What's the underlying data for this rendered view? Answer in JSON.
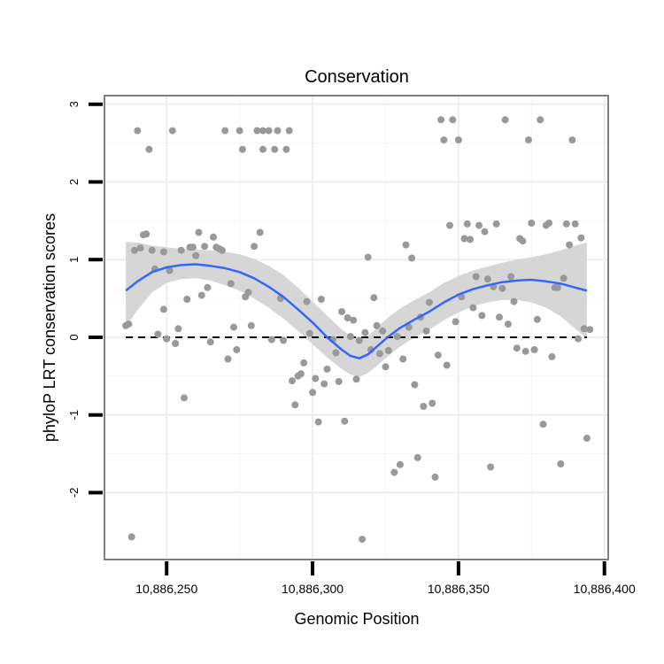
{
  "chart_data": {
    "type": "scatter",
    "title": "Conservation",
    "xlabel": "Genomic Position",
    "ylabel": "phyloP LRT conservation scores",
    "xlim": [
      10886229,
      10886401
    ],
    "ylim": [
      -2.85,
      3.1
    ],
    "x_ticks": [
      {
        "value": 10886250,
        "label": "10,886,250"
      },
      {
        "value": 10886300,
        "label": "10,886,300"
      },
      {
        "value": 10886350,
        "label": "10,886,350"
      },
      {
        "value": 10886400,
        "label": "10,886,400"
      }
    ],
    "y_ticks": [
      {
        "value": -2,
        "label": "-2"
      },
      {
        "value": -1,
        "label": "-1"
      },
      {
        "value": 0,
        "label": "0"
      },
      {
        "value": 1,
        "label": "1"
      },
      {
        "value": 2,
        "label": "2"
      },
      {
        "value": 3,
        "label": "3"
      }
    ],
    "reference_line": {
      "y": 0,
      "style": "dashed"
    },
    "grid": true,
    "colors": {
      "points": "#999999",
      "smooth": "#3366ff",
      "band": "#d6d6d6",
      "panel_border": "#7f7f7f"
    },
    "points": [
      [
        10886236,
        0.15
      ],
      [
        10886237,
        0.17
      ],
      [
        10886238,
        -2.57
      ],
      [
        10886239,
        1.12
      ],
      [
        10886240,
        2.66
      ],
      [
        10886241,
        1.15
      ],
      [
        10886242,
        1.32
      ],
      [
        10886243,
        1.33
      ],
      [
        10886244,
        2.42
      ],
      [
        10886245,
        1.12
      ],
      [
        10886246,
        0.88
      ],
      [
        10886247,
        0.04
      ],
      [
        10886249,
        1.1
      ],
      [
        10886249,
        0.36
      ],
      [
        10886250,
        -0.02
      ],
      [
        10886251,
        0.86
      ],
      [
        10886252,
        2.66
      ],
      [
        10886253,
        -0.08
      ],
      [
        10886254,
        0.11
      ],
      [
        10886255,
        1.12
      ],
      [
        10886256,
        -0.78
      ],
      [
        10886257,
        0.49
      ],
      [
        10886258,
        1.16
      ],
      [
        10886259,
        1.16
      ],
      [
        10886260,
        1.05
      ],
      [
        10886261,
        1.35
      ],
      [
        10886262,
        0.54
      ],
      [
        10886263,
        1.17
      ],
      [
        10886264,
        0.64
      ],
      [
        10886265,
        -0.06
      ],
      [
        10886266,
        1.29
      ],
      [
        10886267,
        1.16
      ],
      [
        10886268,
        1.14
      ],
      [
        10886269,
        1.12
      ],
      [
        10886270,
        2.66
      ],
      [
        10886271,
        -0.28
      ],
      [
        10886272,
        0.69
      ],
      [
        10886273,
        0.13
      ],
      [
        10886274,
        -0.16
      ],
      [
        10886275,
        2.66
      ],
      [
        10886276,
        2.42
      ],
      [
        10886277,
        0.52
      ],
      [
        10886278,
        0.58
      ],
      [
        10886279,
        0.15
      ],
      [
        10886280,
        1.17
      ],
      [
        10886281,
        2.66
      ],
      [
        10886282,
        1.35
      ],
      [
        10886283,
        2.66
      ],
      [
        10886283,
        2.42
      ],
      [
        10886285,
        2.66
      ],
      [
        10886286,
        -0.03
      ],
      [
        10886287,
        2.42
      ],
      [
        10886288,
        2.66
      ],
      [
        10886289,
        0.5
      ],
      [
        10886290,
        -0.04
      ],
      [
        10886291,
        2.42
      ],
      [
        10886292,
        2.66
      ],
      [
        10886293,
        -0.56
      ],
      [
        10886294,
        -0.87
      ],
      [
        10886295,
        -0.5
      ],
      [
        10886296,
        -0.47
      ],
      [
        10886297,
        -0.33
      ],
      [
        10886298,
        0.46
      ],
      [
        10886299,
        0.05
      ],
      [
        10886300,
        -0.71
      ],
      [
        10886301,
        -0.53
      ],
      [
        10886302,
        -1.09
      ],
      [
        10886303,
        0.49
      ],
      [
        10886304,
        -0.6
      ],
      [
        10886305,
        -0.41
      ],
      [
        10886307,
        -0.03
      ],
      [
        10886308,
        -0.2
      ],
      [
        10886309,
        -0.57
      ],
      [
        10886310,
        0.33
      ],
      [
        10886311,
        -1.08
      ],
      [
        10886312,
        0.25
      ],
      [
        10886313,
        0.01
      ],
      [
        10886314,
        0.22
      ],
      [
        10886315,
        -0.54
      ],
      [
        10886316,
        -0.04
      ],
      [
        10886317,
        -2.6
      ],
      [
        10886318,
        0.06
      ],
      [
        10886319,
        1.03
      ],
      [
        10886320,
        -0.16
      ],
      [
        10886321,
        0.51
      ],
      [
        10886322,
        0.15
      ],
      [
        10886323,
        -0.21
      ],
      [
        10886324,
        0.08
      ],
      [
        10886325,
        -0.38
      ],
      [
        10886326,
        -0.17
      ],
      [
        10886328,
        -1.74
      ],
      [
        10886329,
        0.01
      ],
      [
        10886330,
        -1.64
      ],
      [
        10886331,
        -0.28
      ],
      [
        10886332,
        1.19
      ],
      [
        10886333,
        0.13
      ],
      [
        10886334,
        1.02
      ],
      [
        10886335,
        -0.61
      ],
      [
        10886336,
        -1.55
      ],
      [
        10886337,
        0.26
      ],
      [
        10886338,
        -0.89
      ],
      [
        10886339,
        0.08
      ],
      [
        10886340,
        0.45
      ],
      [
        10886341,
        -0.85
      ],
      [
        10886342,
        -1.8
      ],
      [
        10886343,
        -0.23
      ],
      [
        10886344,
        2.8
      ],
      [
        10886345,
        2.54
      ],
      [
        10886346,
        -0.36
      ],
      [
        10886347,
        1.44
      ],
      [
        10886348,
        2.8
      ],
      [
        10886349,
        0.2
      ],
      [
        10886350,
        2.54
      ],
      [
        10886351,
        0.52
      ],
      [
        10886352,
        1.27
      ],
      [
        10886353,
        1.46
      ],
      [
        10886354,
        1.26
      ],
      [
        10886355,
        0.38
      ],
      [
        10886356,
        0.78
      ],
      [
        10886357,
        1.44
      ],
      [
        10886358,
        0.28
      ],
      [
        10886359,
        1.36
      ],
      [
        10886360,
        0.75
      ],
      [
        10886361,
        -1.67
      ],
      [
        10886362,
        0.65
      ],
      [
        10886363,
        1.46
      ],
      [
        10886364,
        0.26
      ],
      [
        10886365,
        0.63
      ],
      [
        10886366,
        2.8
      ],
      [
        10886367,
        0.17
      ],
      [
        10886368,
        0.78
      ],
      [
        10886369,
        0.46
      ],
      [
        10886370,
        -0.14
      ],
      [
        10886371,
        1.27
      ],
      [
        10886372,
        1.24
      ],
      [
        10886373,
        -0.18
      ],
      [
        10886374,
        2.54
      ],
      [
        10886375,
        1.47
      ],
      [
        10886376,
        -0.16
      ],
      [
        10886377,
        0.23
      ],
      [
        10886378,
        2.8
      ],
      [
        10886379,
        -1.12
      ],
      [
        10886380,
        1.44
      ],
      [
        10886381,
        1.47
      ],
      [
        10886382,
        -0.25
      ],
      [
        10886383,
        0.64
      ],
      [
        10886384,
        0.64
      ],
      [
        10886385,
        -1.63
      ],
      [
        10886386,
        0.76
      ],
      [
        10886387,
        1.46
      ],
      [
        10886388,
        1.19
      ],
      [
        10886389,
        2.54
      ],
      [
        10886390,
        1.46
      ],
      [
        10886391,
        -0.02
      ],
      [
        10886392,
        1.28
      ],
      [
        10886393,
        0.11
      ],
      [
        10886394,
        -1.3
      ],
      [
        10886395,
        0.1
      ]
    ],
    "smooth": [
      {
        "x": 10886236,
        "y": 0.6,
        "lo": 0.14,
        "hi": 1.23
      },
      {
        "x": 10886240,
        "y": 0.72,
        "lo": 0.35,
        "hi": 1.22
      },
      {
        "x": 10886245,
        "y": 0.84,
        "lo": 0.58,
        "hi": 1.18
      },
      {
        "x": 10886250,
        "y": 0.9,
        "lo": 0.7,
        "hi": 1.16
      },
      {
        "x": 10886255,
        "y": 0.93,
        "lo": 0.75,
        "hi": 1.14
      },
      {
        "x": 10886260,
        "y": 0.94,
        "lo": 0.76,
        "hi": 1.13
      },
      {
        "x": 10886265,
        "y": 0.92,
        "lo": 0.73,
        "hi": 1.12
      },
      {
        "x": 10886270,
        "y": 0.89,
        "lo": 0.67,
        "hi": 1.1
      },
      {
        "x": 10886275,
        "y": 0.84,
        "lo": 0.6,
        "hi": 1.07
      },
      {
        "x": 10886280,
        "y": 0.76,
        "lo": 0.5,
        "hi": 1.01
      },
      {
        "x": 10886285,
        "y": 0.65,
        "lo": 0.38,
        "hi": 0.92
      },
      {
        "x": 10886290,
        "y": 0.52,
        "lo": 0.24,
        "hi": 0.8
      },
      {
        "x": 10886295,
        "y": 0.36,
        "lo": 0.08,
        "hi": 0.64
      },
      {
        "x": 10886300,
        "y": 0.19,
        "lo": -0.09,
        "hi": 0.46
      },
      {
        "x": 10886305,
        "y": 0.0,
        "lo": -0.26,
        "hi": 0.28
      },
      {
        "x": 10886310,
        "y": -0.16,
        "lo": -0.41,
        "hi": 0.1
      },
      {
        "x": 10886313,
        "y": -0.24,
        "lo": -0.48,
        "hi": 0.02
      },
      {
        "x": 10886316,
        "y": -0.27,
        "lo": -0.51,
        "hi": -0.03
      },
      {
        "x": 10886319,
        "y": -0.22,
        "lo": -0.46,
        "hi": 0.02
      },
      {
        "x": 10886322,
        "y": -0.12,
        "lo": -0.37,
        "hi": 0.12
      },
      {
        "x": 10886326,
        "y": 0.01,
        "lo": -0.24,
        "hi": 0.26
      },
      {
        "x": 10886330,
        "y": 0.12,
        "lo": -0.12,
        "hi": 0.37
      },
      {
        "x": 10886335,
        "y": 0.23,
        "lo": 0.0,
        "hi": 0.48
      },
      {
        "x": 10886340,
        "y": 0.33,
        "lo": 0.1,
        "hi": 0.58
      },
      {
        "x": 10886345,
        "y": 0.45,
        "lo": 0.22,
        "hi": 0.7
      },
      {
        "x": 10886350,
        "y": 0.55,
        "lo": 0.32,
        "hi": 0.79
      },
      {
        "x": 10886355,
        "y": 0.62,
        "lo": 0.4,
        "hi": 0.86
      },
      {
        "x": 10886360,
        "y": 0.67,
        "lo": 0.45,
        "hi": 0.91
      },
      {
        "x": 10886365,
        "y": 0.71,
        "lo": 0.48,
        "hi": 0.96
      },
      {
        "x": 10886370,
        "y": 0.73,
        "lo": 0.48,
        "hi": 1.0
      },
      {
        "x": 10886375,
        "y": 0.74,
        "lo": 0.45,
        "hi": 1.03
      },
      {
        "x": 10886380,
        "y": 0.72,
        "lo": 0.38,
        "hi": 1.07
      },
      {
        "x": 10886385,
        "y": 0.69,
        "lo": 0.27,
        "hi": 1.12
      },
      {
        "x": 10886390,
        "y": 0.64,
        "lo": 0.11,
        "hi": 1.18
      },
      {
        "x": 10886394,
        "y": 0.6,
        "lo": -0.02,
        "hi": 1.22
      }
    ]
  }
}
